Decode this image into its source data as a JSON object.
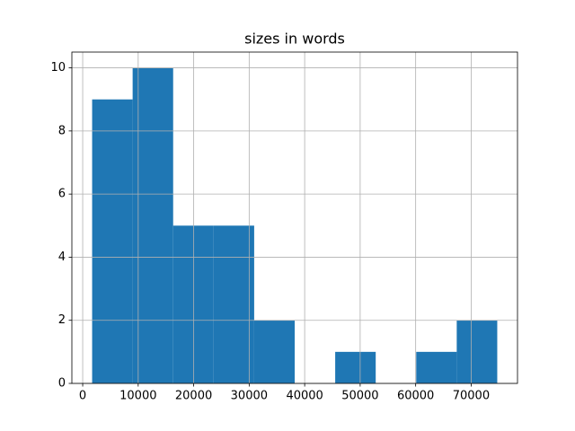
{
  "chart_data": {
    "type": "histogram",
    "title": "sizes in words",
    "bins": [
      1700,
      9000,
      16300,
      23600,
      30900,
      38200,
      45500,
      52800,
      60100,
      67400,
      74700
    ],
    "counts": [
      9,
      10,
      5,
      5,
      2,
      0,
      1,
      0,
      1,
      2
    ],
    "color": "#1f77b4",
    "xlim": [
      -1950,
      78350
    ],
    "xticks": [
      0,
      10000,
      20000,
      30000,
      40000,
      50000,
      60000,
      70000
    ],
    "ylim": [
      0,
      10.5
    ],
    "yticks": [
      0,
      2,
      4,
      6,
      8,
      10
    ],
    "grid": true
  }
}
